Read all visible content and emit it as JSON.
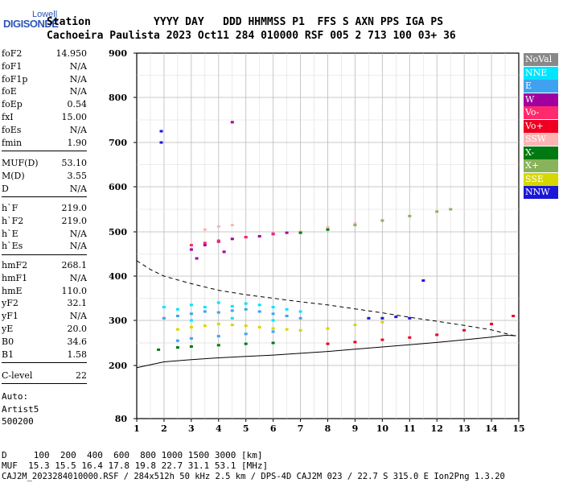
{
  "header": {
    "brand_top": "Lowell",
    "brand_main": "DIGISONDE",
    "line1": "Station          YYYY DAY   DDD HHMMSS P1  FFS S AXN PPS IGA PS",
    "line2": "Cachoeira Paulista 2023 Oct11 284 010000 RSF 005 2 713 100 03+ 36"
  },
  "params_a": [
    {
      "name": "foF2",
      "value": "14.950"
    },
    {
      "name": "foF1",
      "value": "N/A"
    },
    {
      "name": "foF1p",
      "value": "N/A"
    },
    {
      "name": "foE",
      "value": "N/A"
    },
    {
      "name": "foEp",
      "value": "0.54"
    },
    {
      "name": "fxI",
      "value": "15.00"
    },
    {
      "name": "foEs",
      "value": "N/A"
    },
    {
      "name": "fmin",
      "value": "1.90"
    }
  ],
  "params_b": [
    {
      "name": "MUF(D)",
      "value": "53.10"
    },
    {
      "name": "M(D)",
      "value": "3.55"
    },
    {
      "name": "D",
      "value": "N/A"
    }
  ],
  "params_c": [
    {
      "name": "h`F",
      "value": "219.0"
    },
    {
      "name": "h`F2",
      "value": "219.0"
    },
    {
      "name": "h`E",
      "value": "N/A"
    },
    {
      "name": "h`Es",
      "value": "N/A"
    }
  ],
  "params_d": [
    {
      "name": "hmF2",
      "value": "268.1"
    },
    {
      "name": "hmF1",
      "value": "N/A"
    },
    {
      "name": "hmE",
      "value": "110.0"
    },
    {
      "name": "yF2",
      "value": "32.1"
    },
    {
      "name": "yF1",
      "value": "N/A"
    },
    {
      "name": "yE",
      "value": "20.0"
    },
    {
      "name": "B0",
      "value": "34.6"
    },
    {
      "name": "B1",
      "value": "1.58"
    }
  ],
  "params_e": [
    {
      "name": "C-level",
      "value": "22"
    }
  ],
  "autoscale": {
    "label": "Auto:",
    "artist": "Artist5",
    "version": "500200"
  },
  "muf_table": {
    "d_line": "D     100  200  400  600  800 1000 1500 3000 [km]",
    "muf_line": "MUF  15.3 15.5 16.4 17.8 19.8 22.7 31.1 53.1 [MHz]"
  },
  "footer": "CAJ2M_2023284010000.RSF / 284x512h 50 kHz 2.5 km / DPS-4D CAJ2M 023 / 22.7 S 315.0 E Ion2Png 1.3.20",
  "legend": [
    {
      "label": "NoVal",
      "color": "#888888",
      "text": "#ffffff"
    },
    {
      "label": "NNE",
      "color": "#00e5ff",
      "text": "#ffffff"
    },
    {
      "label": "E",
      "color": "#3fa2f0",
      "text": "#ffffff"
    },
    {
      "label": "W",
      "color": "#a0009f",
      "text": "#ffffff"
    },
    {
      "label": "Vo-",
      "color": "#ff2a6e",
      "text": "#ffffff"
    },
    {
      "label": "Vo+",
      "color": "#ee0022",
      "text": "#ffffff"
    },
    {
      "label": "SSW",
      "color": "#ffb3b3",
      "text": "#ffffff"
    },
    {
      "label": "X-",
      "color": "#007a10",
      "text": "#ffffff"
    },
    {
      "label": "X+",
      "color": "#88b35a",
      "text": "#ffffff"
    },
    {
      "label": "SSE",
      "color": "#d7d700",
      "text": "#ffffff"
    },
    {
      "label": "NNW",
      "color": "#1b17d6",
      "text": "#ffffff"
    }
  ],
  "chart_data": {
    "type": "scatter",
    "title": "",
    "xlabel": "",
    "ylabel": "",
    "xlim": [
      1,
      15
    ],
    "ylim": [
      80,
      900
    ],
    "x_ticks": [
      1,
      2,
      3,
      4,
      5,
      6,
      7,
      8,
      9,
      10,
      11,
      12,
      13,
      14,
      15
    ],
    "y_ticks": [
      80,
      200,
      300,
      400,
      500,
      600,
      700,
      800,
      900
    ],
    "grid": true,
    "series": [
      {
        "name": "NNE",
        "color": "#00e5ff",
        "points": [
          [
            2.0,
            330
          ],
          [
            2.5,
            325
          ],
          [
            3.0,
            335
          ],
          [
            3.5,
            330
          ],
          [
            4.0,
            340
          ],
          [
            4.5,
            332
          ],
          [
            5.0,
            338
          ],
          [
            5.5,
            335
          ],
          [
            6.0,
            330
          ],
          [
            6.5,
            325
          ],
          [
            7.0,
            320
          ],
          [
            3.0,
            300
          ],
          [
            4.5,
            305
          ],
          [
            6.0,
            300
          ]
        ]
      },
      {
        "name": "E",
        "color": "#3fa2f0",
        "points": [
          [
            2.0,
            305
          ],
          [
            2.5,
            310
          ],
          [
            3.0,
            315
          ],
          [
            3.5,
            320
          ],
          [
            4.0,
            318
          ],
          [
            4.5,
            322
          ],
          [
            5.0,
            325
          ],
          [
            5.5,
            320
          ],
          [
            6.0,
            315
          ],
          [
            6.5,
            310
          ],
          [
            7.0,
            305
          ],
          [
            2.5,
            255
          ],
          [
            3.0,
            260
          ],
          [
            4.0,
            265
          ],
          [
            5.0,
            270
          ],
          [
            6.0,
            275
          ]
        ]
      },
      {
        "name": "W",
        "color": "#a0009f",
        "points": [
          [
            3.0,
            460
          ],
          [
            3.5,
            470
          ],
          [
            4.0,
            478
          ],
          [
            4.5,
            484
          ],
          [
            5.0,
            488
          ],
          [
            5.5,
            490
          ],
          [
            6.0,
            495
          ],
          [
            6.5,
            498
          ],
          [
            3.2,
            440
          ],
          [
            4.2,
            455
          ],
          [
            4.5,
            745
          ]
        ]
      },
      {
        "name": "Vo-",
        "color": "#ff2a6e",
        "points": [
          [
            3.0,
            470
          ],
          [
            3.5,
            475
          ],
          [
            4.0,
            480
          ],
          [
            5.0,
            488
          ],
          [
            6.0,
            496
          ]
        ]
      },
      {
        "name": "Vo+",
        "color": "#ee0022",
        "points": [
          [
            8.0,
            248
          ],
          [
            9.0,
            252
          ],
          [
            10.0,
            257
          ],
          [
            11.0,
            262
          ],
          [
            12.0,
            268
          ],
          [
            13.0,
            278
          ],
          [
            14.0,
            292
          ],
          [
            14.8,
            310
          ]
        ]
      },
      {
        "name": "SSW",
        "color": "#ffb3b3",
        "points": [
          [
            3.5,
            505
          ],
          [
            4.0,
            512
          ],
          [
            4.5,
            515
          ],
          [
            7.0,
            500
          ],
          [
            8.0,
            510
          ],
          [
            9.0,
            518
          ],
          [
            10.0,
            525
          ]
        ]
      },
      {
        "name": "X-",
        "color": "#007a10",
        "points": [
          [
            1.8,
            235
          ],
          [
            2.5,
            240
          ],
          [
            3.0,
            242
          ],
          [
            4.0,
            245
          ],
          [
            5.0,
            248
          ],
          [
            6.0,
            250
          ],
          [
            7.0,
            498
          ],
          [
            8.0,
            505
          ]
        ]
      },
      {
        "name": "X+",
        "color": "#88b35a",
        "points": [
          [
            9.0,
            515
          ],
          [
            10.0,
            525
          ],
          [
            11.0,
            535
          ],
          [
            12.0,
            545
          ],
          [
            12.5,
            550
          ]
        ]
      },
      {
        "name": "SSE",
        "color": "#d7d700",
        "points": [
          [
            2.5,
            280
          ],
          [
            3.0,
            285
          ],
          [
            3.5,
            288
          ],
          [
            4.0,
            292
          ],
          [
            4.5,
            290
          ],
          [
            5.0,
            288
          ],
          [
            5.5,
            285
          ],
          [
            6.0,
            282
          ],
          [
            6.5,
            280
          ],
          [
            7.0,
            278
          ],
          [
            8.0,
            282
          ],
          [
            9.0,
            290
          ],
          [
            10.0,
            296
          ]
        ]
      },
      {
        "name": "NNW",
        "color": "#1b17d6",
        "points": [
          [
            1.9,
            725
          ],
          [
            1.9,
            700
          ],
          [
            9.5,
            305
          ],
          [
            10.0,
            305
          ],
          [
            10.5,
            308
          ],
          [
            11.0,
            305
          ],
          [
            11.5,
            390
          ]
        ]
      }
    ],
    "curves": [
      {
        "style": "dashed",
        "points": [
          [
            1.0,
            435
          ],
          [
            1.5,
            415
          ],
          [
            2.0,
            400
          ],
          [
            3.0,
            383
          ],
          [
            4.0,
            368
          ],
          [
            5.0,
            358
          ],
          [
            6.0,
            350
          ],
          [
            7.0,
            342
          ],
          [
            8.0,
            335
          ],
          [
            9.0,
            326
          ],
          [
            10.0,
            317
          ],
          [
            11.0,
            307
          ],
          [
            12.0,
            298
          ],
          [
            13.0,
            289
          ],
          [
            14.0,
            279
          ],
          [
            14.7,
            268
          ],
          [
            14.9,
            265
          ]
        ]
      },
      {
        "style": "solid",
        "points": [
          [
            1.0,
            195
          ],
          [
            2.0,
            208
          ],
          [
            3.0,
            213
          ],
          [
            4.0,
            217
          ],
          [
            5.0,
            220
          ],
          [
            6.0,
            223
          ],
          [
            7.0,
            227
          ],
          [
            8.0,
            231
          ],
          [
            9.0,
            236
          ],
          [
            10.0,
            241
          ],
          [
            11.0,
            246
          ],
          [
            12.0,
            251
          ],
          [
            13.0,
            257
          ],
          [
            14.0,
            263
          ],
          [
            14.5,
            267
          ],
          [
            14.9,
            266
          ]
        ]
      }
    ]
  }
}
